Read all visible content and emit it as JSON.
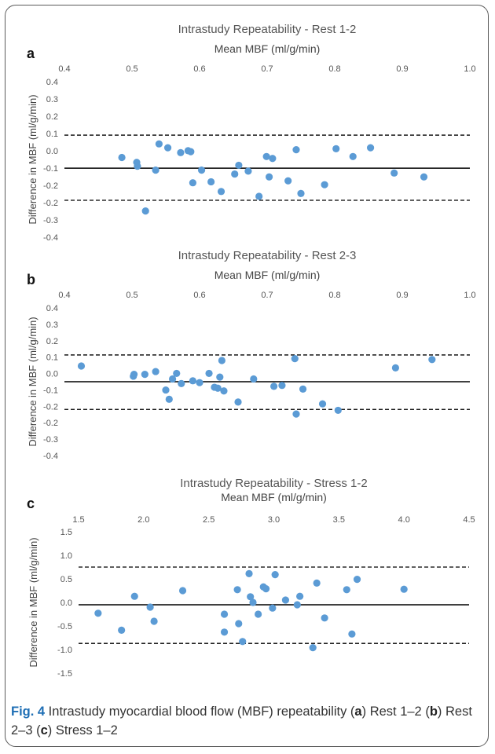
{
  "caption": {
    "fig_label": "Fig. 4",
    "text_1": " Intrastudy myocardial blood flow (MBF) repeatability (",
    "letter_a": "a",
    "text_2": ") Rest 1–2 (",
    "letter_b": "b",
    "text_3": ") Rest 2–3 (",
    "letter_c": "c",
    "text_4": ") Stress 1–2"
  },
  "chart_data": [
    {
      "type": "scatter",
      "panel": "a",
      "title": "Intrastudy Repeatability - Rest 1-2",
      "xlabel": "Mean MBF (ml/g/min)",
      "ylabel": "Difference in MBF (ml/g/min)",
      "xlim": [
        0.4,
        1.0
      ],
      "ylim": [
        -0.4,
        0.4
      ],
      "xticks": [
        "0.4",
        "0.5",
        "0.6",
        "0.7",
        "0.8",
        "0.9",
        "1.0"
      ],
      "yticks": [
        "0.4",
        "0.3",
        "0.2",
        "0.1",
        "0.0",
        "-0.1",
        "-0.2",
        "-0.2",
        "-0.3",
        "-0.4"
      ],
      "mean_line": -0.045,
      "upper_limit": 0.125,
      "lower_limit": -0.21,
      "x_axis_position": "top",
      "grid": false,
      "color": "#5b9bd5",
      "points": [
        [
          0.485,
          0.01
        ],
        [
          0.507,
          -0.015
        ],
        [
          0.508,
          -0.035
        ],
        [
          0.52,
          -0.265
        ],
        [
          0.535,
          -0.055
        ],
        [
          0.54,
          0.08
        ],
        [
          0.553,
          0.06
        ],
        [
          0.572,
          0.035
        ],
        [
          0.583,
          0.045
        ],
        [
          0.587,
          0.04
        ],
        [
          0.59,
          -0.12
        ],
        [
          0.603,
          -0.055
        ],
        [
          0.617,
          -0.115
        ],
        [
          0.632,
          -0.165
        ],
        [
          0.652,
          -0.075
        ],
        [
          0.658,
          -0.03
        ],
        [
          0.672,
          -0.06
        ],
        [
          0.688,
          -0.19
        ],
        [
          0.699,
          0.015
        ],
        [
          0.703,
          -0.09
        ],
        [
          0.708,
          0.005
        ],
        [
          0.731,
          -0.11
        ],
        [
          0.743,
          0.05
        ],
        [
          0.75,
          -0.175
        ],
        [
          0.785,
          -0.13
        ],
        [
          0.802,
          0.055
        ],
        [
          0.827,
          0.015
        ],
        [
          0.853,
          0.06
        ],
        [
          0.888,
          -0.07
        ],
        [
          0.932,
          -0.09
        ]
      ]
    },
    {
      "type": "scatter",
      "panel": "b",
      "title": "Intrastudy Repeatability - Rest 2-3",
      "xlabel": "Mean MBF (ml/g/min)",
      "ylabel": "Difference in MBF (ml/g/min)",
      "xlim": [
        0.4,
        1.0
      ],
      "ylim": [
        -0.4,
        0.4
      ],
      "xticks": [
        "0.4",
        "0.5",
        "0.6",
        "0.7",
        "0.8",
        "0.9",
        "1.0"
      ],
      "yticks": [
        "0.4",
        "0.3",
        "0.2",
        "0.1",
        "0.0",
        "-0.1",
        "-0.2",
        "-0.2",
        "-0.3",
        "-0.4"
      ],
      "mean_line": 0.0,
      "upper_limit": 0.145,
      "lower_limit": -0.15,
      "x_axis_position": "top",
      "grid": false,
      "color": "#5b9bd5",
      "points": [
        [
          0.425,
          0.085
        ],
        [
          0.502,
          0.03
        ],
        [
          0.503,
          0.04
        ],
        [
          0.519,
          0.04
        ],
        [
          0.535,
          0.055
        ],
        [
          0.55,
          -0.045
        ],
        [
          0.555,
          -0.095
        ],
        [
          0.56,
          0.015
        ],
        [
          0.566,
          0.045
        ],
        [
          0.573,
          -0.01
        ],
        [
          0.59,
          0.005
        ],
        [
          0.6,
          -0.005
        ],
        [
          0.614,
          0.045
        ],
        [
          0.622,
          -0.03
        ],
        [
          0.627,
          -0.035
        ],
        [
          0.63,
          0.025
        ],
        [
          0.633,
          0.115
        ],
        [
          0.636,
          -0.05
        ],
        [
          0.657,
          -0.11
        ],
        [
          0.68,
          0.015
        ],
        [
          0.71,
          -0.025
        ],
        [
          0.722,
          -0.02
        ],
        [
          0.741,
          0.125
        ],
        [
          0.743,
          -0.175
        ],
        [
          0.753,
          -0.04
        ],
        [
          0.782,
          -0.12
        ],
        [
          0.805,
          -0.155
        ],
        [
          0.89,
          0.075
        ],
        [
          0.944,
          0.12
        ]
      ]
    },
    {
      "type": "scatter",
      "panel": "c",
      "title": "Intrastudy Repeatability - Stress 1-2",
      "xlabel": "Mean MBF (ml/g/min)",
      "ylabel": "Difference in MBF (ml/g/min)",
      "xlim": [
        1.5,
        4.5
      ],
      "ylim": [
        -1.5,
        1.5
      ],
      "xticks": [
        "1.5",
        "2.0",
        "2.5",
        "3.0",
        "3.5",
        "4.0",
        "4.5"
      ],
      "yticks": [
        "1.5",
        "1.0",
        "0.5",
        "0.0",
        "-0.5",
        "-1.0",
        "-1.5"
      ],
      "mean_line": -0.05,
      "upper_limit": 0.75,
      "lower_limit": -0.87,
      "x_axis_position": "top",
      "grid": false,
      "color": "#5b9bd5",
      "points": [
        [
          1.65,
          -0.23
        ],
        [
          1.83,
          -0.59
        ],
        [
          1.93,
          0.13
        ],
        [
          2.05,
          -0.1
        ],
        [
          2.08,
          -0.4
        ],
        [
          2.3,
          0.25
        ],
        [
          2.62,
          -0.25
        ],
        [
          2.62,
          -0.63
        ],
        [
          2.72,
          0.27
        ],
        [
          2.73,
          -0.45
        ],
        [
          2.76,
          -0.83
        ],
        [
          2.81,
          0.61
        ],
        [
          2.82,
          0.12
        ],
        [
          2.84,
          0.0
        ],
        [
          2.88,
          -0.25
        ],
        [
          2.92,
          0.33
        ],
        [
          2.94,
          0.29
        ],
        [
          2.99,
          -0.12
        ],
        [
          3.01,
          0.59
        ],
        [
          3.09,
          0.05
        ],
        [
          3.18,
          -0.05
        ],
        [
          3.2,
          0.13
        ],
        [
          3.3,
          -0.96
        ],
        [
          3.33,
          0.41
        ],
        [
          3.39,
          -0.33
        ],
        [
          3.56,
          0.27
        ],
        [
          3.6,
          -0.67
        ],
        [
          3.64,
          0.49
        ],
        [
          4.0,
          0.28
        ]
      ]
    }
  ]
}
